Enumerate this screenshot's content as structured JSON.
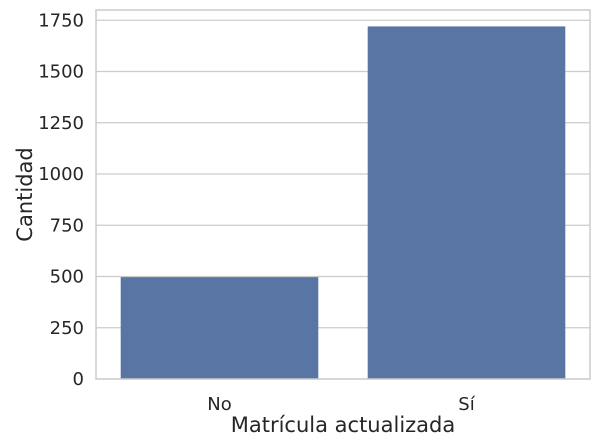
{
  "chart_data": {
    "type": "bar",
    "categories": [
      "No",
      "Sí"
    ],
    "values": [
      497,
      1720
    ],
    "xlabel": "Matrícula actualizada",
    "ylabel": "Cantidad",
    "ylim": [
      0,
      1800
    ],
    "yticks": [
      0,
      250,
      500,
      750,
      1000,
      1250,
      1500,
      1750
    ],
    "grid": true,
    "bar_color": "#5975a4"
  }
}
